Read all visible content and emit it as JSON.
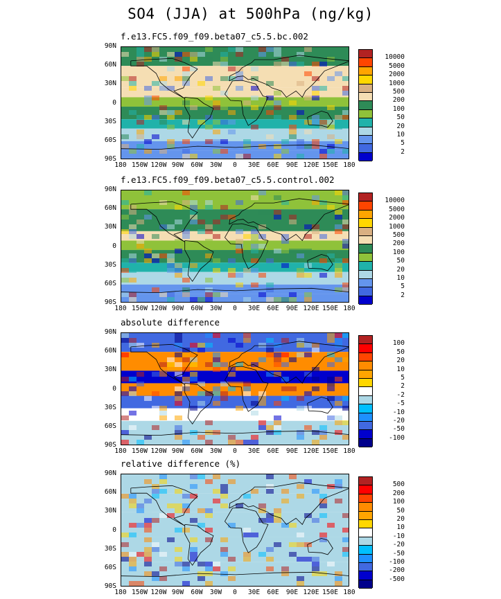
{
  "title": "SO4 (JJA) at 500hPa (ng/kg)",
  "chart_data": [
    {
      "type": "heatmap",
      "id": "panel-1",
      "title": "f.e13.FC5.f09_f09.beta07_c5.5.bc.002",
      "lat_ticks": [
        "90N",
        "60N",
        "30N",
        "0",
        "30S",
        "60S",
        "90S"
      ],
      "lon_ticks": [
        "180",
        "150W",
        "120W",
        "90W",
        "60W",
        "30W",
        "0",
        "30E",
        "60E",
        "90E",
        "120E",
        "150E",
        "180"
      ],
      "colorbar": {
        "levels": [
          "10000",
          "5000",
          "2000",
          "1000",
          "500",
          "200",
          "100",
          "50",
          "20",
          "10",
          "5",
          "2"
        ],
        "colors": [
          "#b22222",
          "#ff4500",
          "#ffa500",
          "#ffd700",
          "#d9b082",
          "#f5deb3",
          "#2e8b57",
          "#8fc23a",
          "#20b2aa",
          "#add8e6",
          "#6495ed",
          "#4169e1",
          "#0000cd"
        ]
      },
      "bands": [
        {
          "lat": [
            90,
            60
          ],
          "level": "200"
        },
        {
          "lat": [
            60,
            25
          ],
          "level": "500"
        },
        {
          "lat": [
            25,
            10
          ],
          "level": "500"
        },
        {
          "lat": [
            10,
            -5
          ],
          "level": "100"
        },
        {
          "lat": [
            -5,
            -25
          ],
          "level": "200"
        },
        {
          "lat": [
            -25,
            -40
          ],
          "level": "50"
        },
        {
          "lat": [
            -40,
            -60
          ],
          "level": "20"
        },
        {
          "lat": [
            -60,
            -75
          ],
          "level": "10"
        },
        {
          "lat": [
            -75,
            -90
          ],
          "level": "10"
        }
      ]
    },
    {
      "type": "heatmap",
      "id": "panel-2",
      "title": "f.e13.FC5.f09_f09.beta07_c5.5.control.002",
      "lat_ticks": [
        "90N",
        "60N",
        "30N",
        "0",
        "30S",
        "60S",
        "90S"
      ],
      "lon_ticks": [
        "180",
        "150W",
        "120W",
        "90W",
        "60W",
        "30W",
        "0",
        "30E",
        "60E",
        "90E",
        "120E",
        "150E",
        "180"
      ],
      "colorbar": {
        "levels": [
          "10000",
          "5000",
          "2000",
          "1000",
          "500",
          "200",
          "100",
          "50",
          "20",
          "10",
          "5",
          "2"
        ],
        "colors": [
          "#b22222",
          "#ff4500",
          "#ffa500",
          "#ffd700",
          "#d9b082",
          "#f5deb3",
          "#2e8b57",
          "#8fc23a",
          "#20b2aa",
          "#add8e6",
          "#6495ed",
          "#4169e1",
          "#0000cd"
        ]
      },
      "bands": [
        {
          "lat": [
            90,
            60
          ],
          "level": "100"
        },
        {
          "lat": [
            60,
            25
          ],
          "level": "200"
        },
        {
          "lat": [
            25,
            10
          ],
          "level": "500"
        },
        {
          "lat": [
            10,
            -5
          ],
          "level": "100"
        },
        {
          "lat": [
            -5,
            -25
          ],
          "level": "200"
        },
        {
          "lat": [
            -25,
            -40
          ],
          "level": "50"
        },
        {
          "lat": [
            -40,
            -60
          ],
          "level": "20"
        },
        {
          "lat": [
            -60,
            -75
          ],
          "level": "10"
        },
        {
          "lat": [
            -75,
            -90
          ],
          "level": "10"
        }
      ]
    },
    {
      "type": "heatmap",
      "id": "panel-3",
      "title": "absolute difference",
      "lat_ticks": [
        "90N",
        "60N",
        "30N",
        "0",
        "30S",
        "60S",
        "90S"
      ],
      "lon_ticks": [
        "180",
        "150W",
        "120W",
        "90W",
        "60W",
        "30W",
        "0",
        "30E",
        "60E",
        "90E",
        "120E",
        "150E",
        "180"
      ],
      "colorbar": {
        "levels": [
          "100",
          "50",
          "20",
          "10",
          "5",
          "2",
          "-2",
          "-5",
          "-10",
          "-20",
          "-50",
          "-100"
        ],
        "colors": [
          "#b22222",
          "#ff0000",
          "#ff4500",
          "#ff8c00",
          "#ffa500",
          "#ffd700",
          "#ffffff",
          "#add8e6",
          "#00bfff",
          "#1e90ff",
          "#4169e1",
          "#0000cd",
          "#00008b"
        ]
      },
      "bands": [
        {
          "lat": [
            90,
            60
          ],
          "level": "-20"
        },
        {
          "lat": [
            60,
            30
          ],
          "level": "20"
        },
        {
          "lat": [
            30,
            10
          ],
          "level": "-50"
        },
        {
          "lat": [
            10,
            -10
          ],
          "level": "20"
        },
        {
          "lat": [
            -10,
            -30
          ],
          "level": "-20"
        },
        {
          "lat": [
            -30,
            -50
          ],
          "level": "2"
        },
        {
          "lat": [
            -50,
            -90
          ],
          "level": "-2"
        }
      ]
    },
    {
      "type": "heatmap",
      "id": "panel-4",
      "title": "relative difference (%)",
      "lat_ticks": [
        "90N",
        "60N",
        "30N",
        "0",
        "30S",
        "60S",
        "90S"
      ],
      "lon_ticks": [
        "180",
        "150W",
        "120W",
        "90W",
        "60W",
        "30W",
        "0",
        "30E",
        "60E",
        "90E",
        "120E",
        "150E",
        "180"
      ],
      "colorbar": {
        "levels": [
          "500",
          "200",
          "100",
          "50",
          "20",
          "10",
          "-10",
          "-20",
          "-50",
          "-100",
          "-200",
          "-500"
        ],
        "colors": [
          "#b22222",
          "#ff0000",
          "#ff4500",
          "#ff8c00",
          "#ffa500",
          "#ffd700",
          "#ffffff",
          "#add8e6",
          "#00bfff",
          "#1e90ff",
          "#4169e1",
          "#0000cd",
          "#00008b"
        ]
      },
      "bands": [
        {
          "lat": [
            90,
            60
          ],
          "level": "-10"
        },
        {
          "lat": [
            60,
            30
          ],
          "level": "-10"
        },
        {
          "lat": [
            30,
            -10
          ],
          "level": "-10"
        },
        {
          "lat": [
            -10,
            -50
          ],
          "level": "-10"
        },
        {
          "lat": [
            -50,
            -90
          ],
          "level": "-10"
        }
      ]
    }
  ]
}
